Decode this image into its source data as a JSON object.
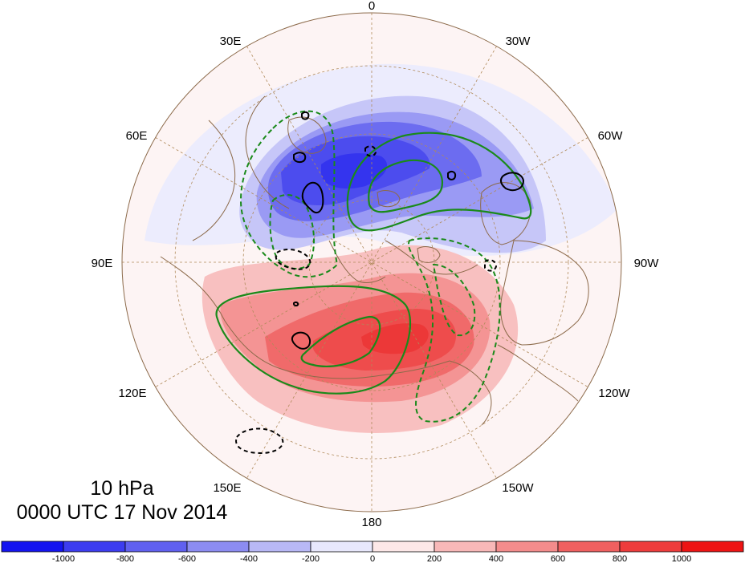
{
  "title": {
    "level": "10 hPa",
    "datetime": "0000 UTC 17 Nov 2014"
  },
  "map": {
    "projection": "north-polar-stereographic",
    "longitude_labels": [
      {
        "id": "0",
        "text": "0",
        "lon": 0
      },
      {
        "id": "30w",
        "text": "30W",
        "lon": -30
      },
      {
        "id": "60w",
        "text": "60W",
        "lon": -60
      },
      {
        "id": "90w",
        "text": "90W",
        "lon": -90
      },
      {
        "id": "120w",
        "text": "120W",
        "lon": -120
      },
      {
        "id": "150w",
        "text": "150W",
        "lon": -150
      },
      {
        "id": "180",
        "text": "180",
        "lon": 180
      },
      {
        "id": "150e",
        "text": "150E",
        "lon": 150
      },
      {
        "id": "120e",
        "text": "120E",
        "lon": 120
      },
      {
        "id": "90e",
        "text": "90E",
        "lon": 90
      },
      {
        "id": "60e",
        "text": "60E",
        "lon": 60
      },
      {
        "id": "30e",
        "text": "30E",
        "lon": 30
      }
    ],
    "colors": {
      "green_contour": "#1a8a1a",
      "black_contour": "#000000",
      "graticule": "#b08a5a",
      "coastline": "#8c6a4a",
      "negative_anomaly": "#4a4af0",
      "positive_anomaly": "#f04a4a"
    }
  },
  "colorbar": {
    "labels": [
      "-1000",
      "-800",
      "-600",
      "-400",
      "-200",
      "0",
      "200",
      "400",
      "600",
      "800",
      "1000"
    ],
    "colors": [
      "#1414f0",
      "#3c3cf0",
      "#6060f0",
      "#8c8cf2",
      "#b8b8f6",
      "#e8e8fc",
      "#fde8e8",
      "#f8b8b8",
      "#f48c8c",
      "#f06060",
      "#ee3c3c",
      "#ee1414"
    ]
  }
}
